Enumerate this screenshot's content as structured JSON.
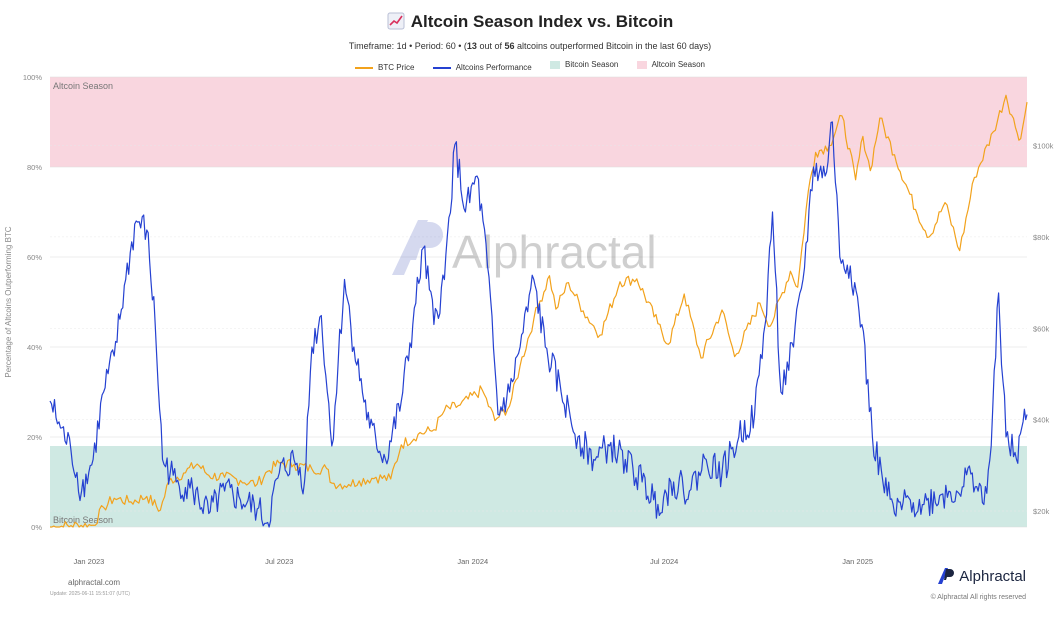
{
  "header": {
    "title": "Altcoin Season Index vs. Bitcoin",
    "subtitle_pre": "Timeframe: 1d  •  Period: 60  •  (",
    "subtitle_count": "13",
    "subtitle_mid": " out of ",
    "subtitle_total": "56",
    "subtitle_post": " altcoins outperformed Bitcoin in the last 60 days)"
  },
  "legend": [
    {
      "label": "BTC Price",
      "color": "#f2a21c",
      "kind": "line"
    },
    {
      "label": "Altcoins Performance",
      "color": "#2541d1",
      "kind": "line"
    },
    {
      "label": "Bitcoin Season",
      "color": "#cfe9e3",
      "kind": "box"
    },
    {
      "label": "Altcoin Season",
      "color": "#f9d6df",
      "kind": "box"
    }
  ],
  "watermark": "Alphractal",
  "footer": {
    "site": "alphractal.com",
    "update": "Update: 2025-06-11 15:51:07 (UTC)",
    "brand": "Alphractal",
    "rights": "© Alphractal All rights reserved"
  },
  "chart_data": {
    "type": "line",
    "ylabel": "Percentage of Altcoins Outperforming BTC",
    "y_left_ticks": [
      "0%",
      "20%",
      "40%",
      "60%",
      "80%",
      "100%"
    ],
    "y_left_lim": [
      0,
      100
    ],
    "y_right_ticks": [
      "$20k",
      "$40k",
      "$60k",
      "$80k",
      "$100k"
    ],
    "y_right_lim": [
      16500,
      115000
    ],
    "x_ticks": [
      "Jan 2023",
      "Jul 2023",
      "Jan 2024",
      "Jul 2024",
      "Jan 2025"
    ],
    "x_range": [
      "2022-11-25",
      "2025-06-11"
    ],
    "grid": true,
    "bands": [
      {
        "name": "Altcoin Season",
        "from": 80,
        "to": 100,
        "color": "#f9d6df",
        "label": "Altcoin Season"
      },
      {
        "name": "Bitcoin Season",
        "from": 0,
        "to": 18,
        "color": "#cfe9e3",
        "label": "Bitcoin Season"
      }
    ],
    "series": [
      {
        "name": "BTC Price",
        "axis": "right",
        "color": "#f2a21c",
        "points": [
          [
            "2022-11-25",
            16500
          ],
          [
            "2022-12-15",
            16800
          ],
          [
            "2023-01-05",
            16900
          ],
          [
            "2023-01-15",
            20800
          ],
          [
            "2023-01-25",
            22800
          ],
          [
            "2023-02-10",
            22000
          ],
          [
            "2023-02-25",
            23200
          ],
          [
            "2023-03-10",
            20200
          ],
          [
            "2023-03-18",
            26500
          ],
          [
            "2023-04-01",
            28300
          ],
          [
            "2023-04-14",
            30300
          ],
          [
            "2023-04-25",
            27800
          ],
          [
            "2023-05-10",
            27400
          ],
          [
            "2023-05-25",
            26700
          ],
          [
            "2023-06-10",
            25900
          ],
          [
            "2023-06-20",
            28700
          ],
          [
            "2023-07-01",
            30500
          ],
          [
            "2023-07-15",
            30200
          ],
          [
            "2023-08-01",
            29200
          ],
          [
            "2023-08-15",
            29300
          ],
          [
            "2023-08-20",
            26100
          ],
          [
            "2023-09-05",
            25800
          ],
          [
            "2023-09-15",
            26600
          ],
          [
            "2023-10-01",
            27400
          ],
          [
            "2023-10-15",
            27000
          ],
          [
            "2023-10-25",
            34500
          ],
          [
            "2023-11-10",
            36800
          ],
          [
            "2023-11-25",
            37800
          ],
          [
            "2023-12-05",
            42000
          ],
          [
            "2023-12-20",
            43200
          ],
          [
            "2024-01-10",
            46500
          ],
          [
            "2024-01-22",
            39800
          ],
          [
            "2024-02-05",
            43000
          ],
          [
            "2024-02-15",
            51800
          ],
          [
            "2024-02-28",
            62000
          ],
          [
            "2024-03-05",
            66000
          ],
          [
            "2024-03-14",
            71500
          ],
          [
            "2024-03-20",
            64200
          ],
          [
            "2024-04-01",
            70000
          ],
          [
            "2024-04-15",
            63800
          ],
          [
            "2024-05-01",
            58500
          ],
          [
            "2024-05-20",
            70200
          ],
          [
            "2024-06-05",
            70800
          ],
          [
            "2024-06-25",
            61000
          ],
          [
            "2024-07-05",
            56500
          ],
          [
            "2024-07-20",
            67500
          ],
          [
            "2024-08-05",
            53500
          ],
          [
            "2024-08-25",
            64000
          ],
          [
            "2024-09-06",
            53800
          ],
          [
            "2024-09-30",
            65500
          ],
          [
            "2024-10-10",
            60500
          ],
          [
            "2024-10-29",
            72500
          ],
          [
            "2024-11-05",
            69000
          ],
          [
            "2024-11-15",
            90000
          ],
          [
            "2024-11-22",
            98500
          ],
          [
            "2024-12-05",
            100000
          ],
          [
            "2024-12-17",
            106500
          ],
          [
            "2024-12-30",
            92500
          ],
          [
            "2025-01-06",
            102000
          ],
          [
            "2025-01-13",
            94500
          ],
          [
            "2025-01-22",
            106000
          ],
          [
            "2025-02-05",
            98000
          ],
          [
            "2025-02-25",
            86000
          ],
          [
            "2025-03-10",
            80000
          ],
          [
            "2025-03-25",
            87500
          ],
          [
            "2025-04-08",
            77000
          ],
          [
            "2025-04-22",
            93000
          ],
          [
            "2025-05-10",
            103000
          ],
          [
            "2025-05-22",
            111000
          ],
          [
            "2025-05-31",
            104000
          ],
          [
            "2025-06-05",
            101500
          ],
          [
            "2025-06-11",
            109500
          ]
        ]
      },
      {
        "name": "Altcoins Performance",
        "axis": "left",
        "color": "#2541d1",
        "points": [
          [
            "2022-11-25",
            28
          ],
          [
            "2022-12-05",
            22
          ],
          [
            "2022-12-15",
            17
          ],
          [
            "2022-12-25",
            8
          ],
          [
            "2023-01-05",
            15
          ],
          [
            "2023-01-15",
            30
          ],
          [
            "2023-01-25",
            38
          ],
          [
            "2023-02-05",
            55
          ],
          [
            "2023-02-15",
            68
          ],
          [
            "2023-02-25",
            66
          ],
          [
            "2023-03-05",
            45
          ],
          [
            "2023-03-12",
            15
          ],
          [
            "2023-03-25",
            10
          ],
          [
            "2023-04-10",
            8
          ],
          [
            "2023-04-25",
            3
          ],
          [
            "2023-05-10",
            8
          ],
          [
            "2023-05-25",
            6
          ],
          [
            "2023-06-10",
            4
          ],
          [
            "2023-06-20",
            1
          ],
          [
            "2023-07-01",
            12
          ],
          [
            "2023-07-15",
            15
          ],
          [
            "2023-07-25",
            10
          ],
          [
            "2023-08-01",
            40
          ],
          [
            "2023-08-10",
            47
          ],
          [
            "2023-08-20",
            18
          ],
          [
            "2023-09-01",
            55
          ],
          [
            "2023-09-10",
            40
          ],
          [
            "2023-09-25",
            22
          ],
          [
            "2023-10-10",
            15
          ],
          [
            "2023-10-25",
            28
          ],
          [
            "2023-11-05",
            45
          ],
          [
            "2023-11-15",
            62
          ],
          [
            "2023-11-25",
            45
          ],
          [
            "2023-12-05",
            55
          ],
          [
            "2023-12-15",
            85
          ],
          [
            "2023-12-25",
            70
          ],
          [
            "2024-01-05",
            78
          ],
          [
            "2024-01-15",
            58
          ],
          [
            "2024-01-25",
            25
          ],
          [
            "2024-02-05",
            30
          ],
          [
            "2024-02-15",
            40
          ],
          [
            "2024-02-28",
            55
          ],
          [
            "2024-03-10",
            40
          ],
          [
            "2024-03-25",
            30
          ],
          [
            "2024-04-10",
            20
          ],
          [
            "2024-04-25",
            15
          ],
          [
            "2024-05-10",
            18
          ],
          [
            "2024-05-25",
            15
          ],
          [
            "2024-06-10",
            10
          ],
          [
            "2024-06-25",
            5
          ],
          [
            "2024-07-10",
            10
          ],
          [
            "2024-07-25",
            8
          ],
          [
            "2024-08-10",
            15
          ],
          [
            "2024-08-25",
            12
          ],
          [
            "2024-09-10",
            20
          ],
          [
            "2024-09-25",
            25
          ],
          [
            "2024-10-05",
            45
          ],
          [
            "2024-10-12",
            70
          ],
          [
            "2024-10-20",
            30
          ],
          [
            "2024-11-01",
            40
          ],
          [
            "2024-11-10",
            55
          ],
          [
            "2024-11-20",
            80
          ],
          [
            "2024-12-01",
            78
          ],
          [
            "2024-12-08",
            90
          ],
          [
            "2024-12-15",
            60
          ],
          [
            "2024-12-25",
            58
          ],
          [
            "2025-01-05",
            45
          ],
          [
            "2025-01-15",
            20
          ],
          [
            "2025-01-25",
            10
          ],
          [
            "2025-02-05",
            3
          ],
          [
            "2025-02-20",
            6
          ],
          [
            "2025-03-05",
            5
          ],
          [
            "2025-03-20",
            7
          ],
          [
            "2025-04-05",
            8
          ],
          [
            "2025-04-20",
            12
          ],
          [
            "2025-05-01",
            5
          ],
          [
            "2025-05-08",
            18
          ],
          [
            "2025-05-15",
            52
          ],
          [
            "2025-05-22",
            20
          ],
          [
            "2025-06-01",
            15
          ],
          [
            "2025-06-06",
            22
          ],
          [
            "2025-06-11",
            25
          ]
        ]
      }
    ]
  }
}
